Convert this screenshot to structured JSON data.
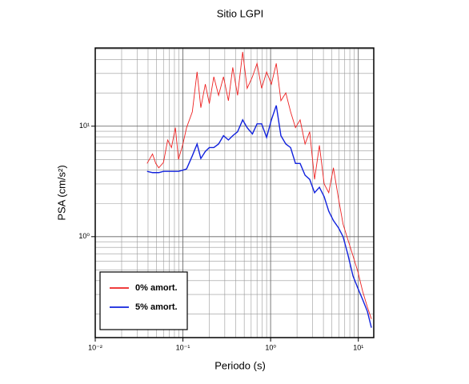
{
  "chart_data": {
    "type": "line",
    "title": "Sitio LGPI",
    "xlabel": "Periodo (s)",
    "ylabel": "PSA (cm/s²)",
    "xscale": "log",
    "yscale": "log",
    "grid": true,
    "minor_grid": true,
    "legend": "lower left",
    "xlim": [
      0.01,
      15
    ],
    "ylim": [
      0.122,
      51
    ],
    "xticks": [
      {
        "value": 0.01,
        "label": "10⁻²"
      },
      {
        "value": 0.1,
        "label": "10⁻¹"
      },
      {
        "value": 1,
        "label": "10⁰"
      },
      {
        "value": 10,
        "label": "10¹"
      }
    ],
    "yticks": [
      {
        "value": 1,
        "label": "10⁰"
      },
      {
        "value": 10,
        "label": "10¹"
      }
    ],
    "x": [
      0.039,
      0.045,
      0.049,
      0.053,
      0.06,
      0.067,
      0.074,
      0.082,
      0.089,
      0.1,
      0.11,
      0.128,
      0.145,
      0.16,
      0.18,
      0.2,
      0.225,
      0.255,
      0.29,
      0.33,
      0.37,
      0.42,
      0.48,
      0.54,
      0.62,
      0.7,
      0.79,
      0.9,
      1.02,
      1.16,
      1.31,
      1.49,
      1.69,
      1.92,
      2.17,
      2.47,
      2.79,
      3.17,
      3.6,
      4.08,
      4.6,
      5.2,
      5.95,
      6.7,
      7.6,
      8.7,
      9.9,
      11.2,
      12.7,
      14.1
    ],
    "series": [
      {
        "name": "0% amort.",
        "color": "#ee2222",
        "values": [
          4.6,
          5.6,
          4.6,
          4.2,
          4.7,
          7.5,
          6.4,
          9.7,
          5.0,
          6.9,
          9.7,
          13.5,
          31,
          14.7,
          24,
          16,
          28,
          19,
          28,
          17,
          34,
          19,
          47,
          22,
          28,
          37,
          22,
          31,
          24,
          37,
          17,
          20,
          13.5,
          9.7,
          11.4,
          6.9,
          8.9,
          3.3,
          6.7,
          3.0,
          2.5,
          4.2,
          2.2,
          1.3,
          0.94,
          0.67,
          0.48,
          0.32,
          0.23,
          0.18
        ]
      },
      {
        "name": "5% amort.",
        "color": "#1122dd",
        "values": [
          3.9,
          3.8,
          3.8,
          3.8,
          3.9,
          3.9,
          3.9,
          3.9,
          3.9,
          4.0,
          4.1,
          5.4,
          6.9,
          5.1,
          5.9,
          6.4,
          6.4,
          6.9,
          8.2,
          7.5,
          8.2,
          8.9,
          11.4,
          9.7,
          8.5,
          10.5,
          10.5,
          7.9,
          11.4,
          15.4,
          8.2,
          6.9,
          6.4,
          4.6,
          4.6,
          3.6,
          3.3,
          2.5,
          2.8,
          2.3,
          1.7,
          1.4,
          1.2,
          1.0,
          0.69,
          0.44,
          0.34,
          0.27,
          0.21,
          0.15
        ]
      }
    ]
  }
}
